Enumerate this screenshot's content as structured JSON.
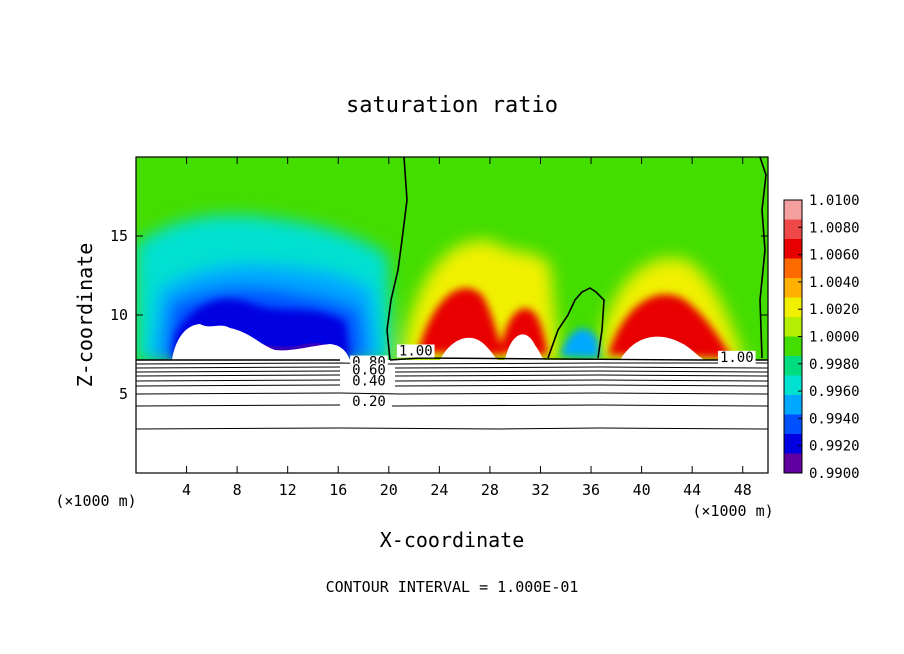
{
  "chart_data": {
    "type": "heatmap",
    "title": "saturation ratio",
    "xlabel": "X-coordinate",
    "ylabel": "Z-coordinate",
    "x_unit_left": "(×1000 m)",
    "x_unit_right": "(×1000 m)",
    "xlim": [
      0,
      50
    ],
    "ylim": [
      0,
      20
    ],
    "x_ticks": [
      4,
      8,
      12,
      16,
      20,
      24,
      28,
      32,
      36,
      40,
      44,
      48
    ],
    "y_ticks": [
      5,
      10,
      15
    ],
    "colorbar": {
      "ticks": [
        "1.0100",
        "1.0080",
        "1.0060",
        "1.0040",
        "1.0020",
        "1.0000",
        "0.9980",
        "0.9960",
        "0.9940",
        "0.9920",
        "0.9900"
      ],
      "range": [
        0.99,
        1.01
      ],
      "colors": [
        "#f4a0a0",
        "#ee4848",
        "#e80000",
        "#ff6a00",
        "#ffb000",
        "#f0f000",
        "#b4ee00",
        "#44dd00",
        "#00dd80",
        "#00e0d0",
        "#00a8ff",
        "#0050ff",
        "#0000e0",
        "#6000a0"
      ]
    },
    "contour_labels": [
      {
        "text": "1.00",
        "x": 20.8,
        "z": 7.5
      },
      {
        "text": "1.00",
        "x": 46.2,
        "z": 7.1
      },
      {
        "text": "0.80",
        "x": 17.1,
        "z": 6.8
      },
      {
        "text": "0.60",
        "x": 17.1,
        "z": 6.3
      },
      {
        "text": "0.40",
        "x": 17.1,
        "z": 5.6
      },
      {
        "text": "0.20",
        "x": 17.1,
        "z": 4.3
      }
    ],
    "footer": "CONTOUR INTERVAL = 1.000E-01"
  }
}
